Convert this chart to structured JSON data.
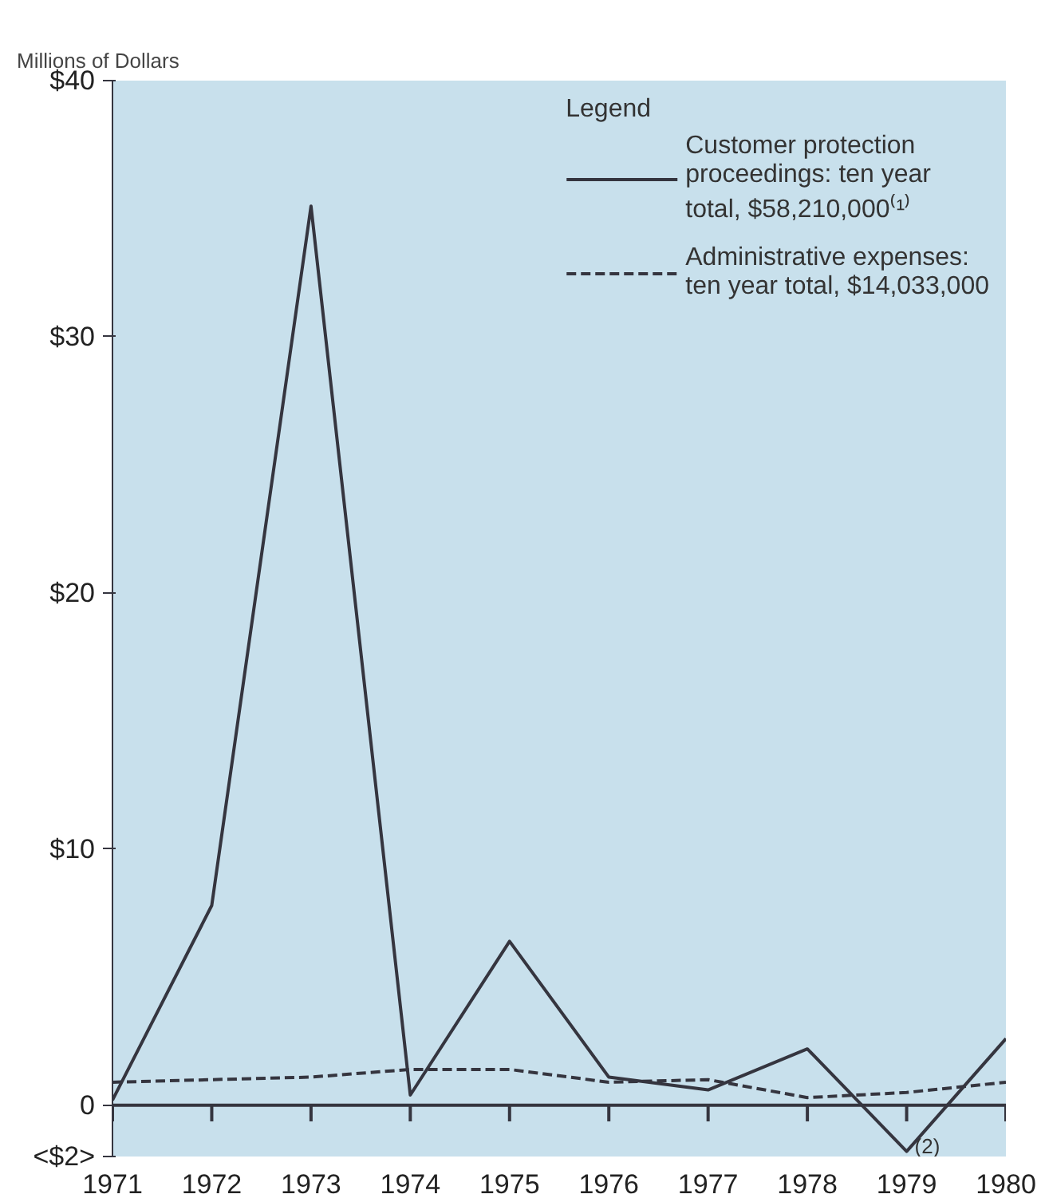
{
  "chart_data": {
    "type": "line",
    "ylabel": "Millions of Dollars",
    "legend_title": "Legend",
    "categories": [
      "1971",
      "1972",
      "1973",
      "1974",
      "1975",
      "1976",
      "1977",
      "1978",
      "1979",
      "1980"
    ],
    "series": [
      {
        "name": "Customer protection proceedings: ten year total, $58,210,000⁽¹⁾",
        "color": "#35353f",
        "line_style": "solid",
        "values": [
          0.2,
          7.8,
          35.1,
          0.4,
          6.4,
          1.1,
          0.6,
          2.2,
          -1.8,
          2.6
        ]
      },
      {
        "name": "Administrative expenses: ten year total, $14,033,000",
        "color": "#35353f",
        "line_style": "dashed",
        "values": [
          0.9,
          1.0,
          1.1,
          1.4,
          1.4,
          0.9,
          1.0,
          0.3,
          0.5,
          0.9
        ]
      }
    ],
    "ylim": [
      -2,
      40
    ],
    "yticks": [
      {
        "value": -2,
        "label": "<$2>"
      },
      {
        "value": 0,
        "label": "0"
      },
      {
        "value": 10,
        "label": "$10"
      },
      {
        "value": 20,
        "label": "$20"
      },
      {
        "value": 30,
        "label": "$30"
      },
      {
        "value": 40,
        "label": "$40"
      }
    ],
    "ref_lines": [
      {
        "axis": "y",
        "value": 0,
        "label": null,
        "color": "#35353f",
        "line_style": "solid"
      }
    ],
    "annotations": [
      {
        "text": "(2)",
        "x": "1979",
        "y": -1.8
      }
    ],
    "grid": false,
    "legend": "top right",
    "marker": "none"
  }
}
